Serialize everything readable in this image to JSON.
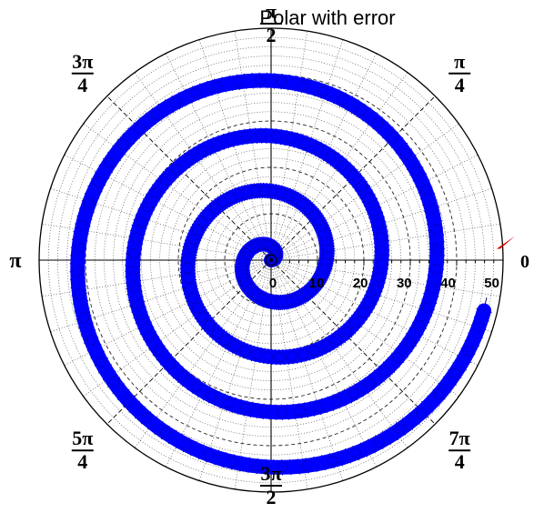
{
  "chart_data": {
    "type": "scatter",
    "title": "Polar with error",
    "coordinate_system": "polar",
    "radial_ticks": [
      "0",
      "10",
      "20",
      "30",
      "40",
      "50"
    ],
    "rlim": [
      0,
      53
    ],
    "angular_labels": [
      {
        "angle_deg": 0,
        "num": "0",
        "den": ""
      },
      {
        "angle_deg": 45,
        "num": "π",
        "den": "4"
      },
      {
        "angle_deg": 90,
        "num": "π",
        "den": "2"
      },
      {
        "angle_deg": 135,
        "num": "3π",
        "den": "4"
      },
      {
        "angle_deg": 180,
        "num": "π",
        "den": ""
      },
      {
        "angle_deg": 225,
        "num": "5π",
        "den": "4"
      },
      {
        "angle_deg": 270,
        "num": "3π",
        "den": "2"
      },
      {
        "angle_deg": 315,
        "num": "7π",
        "den": "4"
      }
    ],
    "grid": true,
    "series": [
      {
        "kind": "spiral",
        "r_start": 0,
        "r_end": 50,
        "theta_start": 0,
        "theta_end": 24.9,
        "marker_color": "#0000ff",
        "edge_color": "#000080",
        "theta_error": 0.06,
        "r_error": 1.8
      }
    ],
    "highlight_marker": {
      "theta": 0.05,
      "r": 50,
      "color": "#cc0000"
    }
  }
}
